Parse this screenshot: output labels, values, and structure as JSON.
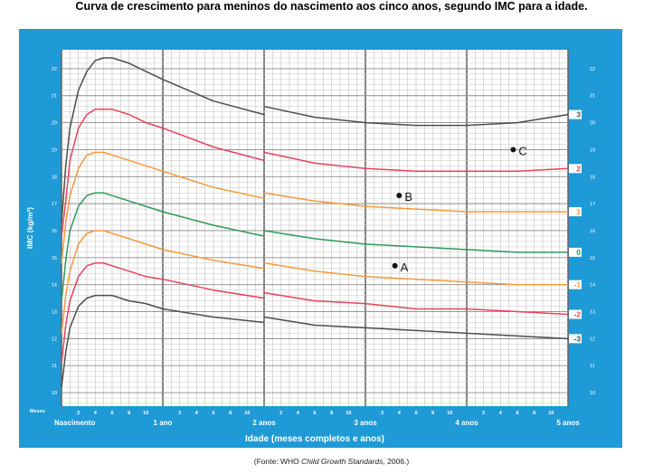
{
  "title": "Curva de crescimento para meninos do nascimento aos cinco anos, segundo IMC para a idade.",
  "source": {
    "prefix": "(Fonte: WHO ",
    "italic": "Child Growth Standards",
    "suffix": ", 2006.)"
  },
  "colors": {
    "frame": "#1e9ad6",
    "z3": "#4d4d4d",
    "z2": "#e8425a",
    "z1": "#f59a3c",
    "z0": "#2f9a5a"
  },
  "chart_data": {
    "type": "line",
    "ylabel": "IMC (kg/m²)",
    "xlabel": "Idade (meses completos e anos)",
    "xlim": [
      0,
      60
    ],
    "ylim": [
      9.5,
      22.7
    ],
    "yticks": [
      10,
      11,
      12,
      13,
      14,
      15,
      16,
      17,
      18,
      19,
      20,
      21,
      22
    ],
    "month_tick_label": "Meses",
    "month_ticks": [
      2,
      4,
      6,
      8,
      10
    ],
    "year_labels": [
      "Nascimento",
      "1 ano",
      "2 anos",
      "3 anos",
      "4 anos",
      "5 anos"
    ],
    "series": [
      {
        "name": "3",
        "color": "#4d4d4d",
        "x": [
          0,
          0.5,
          1,
          2,
          3,
          4,
          5,
          6,
          8,
          10,
          12,
          18,
          24,
          24.01,
          30,
          36,
          42,
          48,
          54,
          60
        ],
        "y": [
          16.3,
          18.4,
          19.8,
          21.2,
          21.9,
          22.3,
          22.4,
          22.4,
          22.2,
          21.9,
          21.6,
          20.8,
          20.3,
          20.6,
          20.2,
          20.0,
          19.9,
          19.9,
          20.0,
          20.3
        ]
      },
      {
        "name": "2",
        "color": "#e8425a",
        "x": [
          0,
          0.5,
          1,
          2,
          3,
          4,
          5,
          6,
          8,
          10,
          12,
          18,
          24,
          24.01,
          30,
          36,
          42,
          48,
          54,
          60
        ],
        "y": [
          15.8,
          17.1,
          18.6,
          19.8,
          20.3,
          20.5,
          20.5,
          20.5,
          20.3,
          20.0,
          19.8,
          19.1,
          18.6,
          18.9,
          18.5,
          18.3,
          18.2,
          18.2,
          18.2,
          18.3
        ]
      },
      {
        "name": "1",
        "color": "#f59a3c",
        "x": [
          0,
          0.5,
          1,
          2,
          3,
          4,
          5,
          6,
          8,
          10,
          12,
          18,
          24,
          24.01,
          30,
          36,
          42,
          48,
          54,
          60
        ],
        "y": [
          14.8,
          16.3,
          17.3,
          18.3,
          18.8,
          18.9,
          18.9,
          18.8,
          18.6,
          18.4,
          18.2,
          17.6,
          17.2,
          17.4,
          17.1,
          16.9,
          16.8,
          16.7,
          16.7,
          16.7
        ]
      },
      {
        "name": "0",
        "color": "#2f9a5a",
        "x": [
          0,
          0.5,
          1,
          2,
          3,
          4,
          5,
          6,
          8,
          10,
          12,
          18,
          24,
          24.01,
          30,
          36,
          42,
          48,
          54,
          60
        ],
        "y": [
          13.4,
          14.9,
          16.0,
          16.9,
          17.3,
          17.4,
          17.4,
          17.3,
          17.1,
          16.9,
          16.7,
          16.2,
          15.8,
          16.0,
          15.7,
          15.5,
          15.4,
          15.3,
          15.2,
          15.2
        ]
      },
      {
        "name": "-1",
        "color": "#f59a3c",
        "x": [
          0,
          0.5,
          1,
          2,
          3,
          4,
          5,
          6,
          8,
          10,
          12,
          18,
          24,
          24.01,
          30,
          36,
          42,
          48,
          54,
          60
        ],
        "y": [
          12.2,
          13.6,
          14.5,
          15.5,
          15.9,
          16.0,
          16.0,
          15.9,
          15.7,
          15.5,
          15.3,
          14.9,
          14.6,
          14.8,
          14.5,
          14.3,
          14.2,
          14.1,
          14.0,
          14.0
        ]
      },
      {
        "name": "-2",
        "color": "#e8425a",
        "x": [
          0,
          0.5,
          1,
          2,
          3,
          4,
          5,
          6,
          8,
          10,
          12,
          18,
          24,
          24.01,
          30,
          36,
          42,
          48,
          54,
          60
        ],
        "y": [
          11.1,
          12.5,
          13.4,
          14.3,
          14.7,
          14.8,
          14.8,
          14.7,
          14.5,
          14.3,
          14.2,
          13.8,
          13.5,
          13.7,
          13.4,
          13.3,
          13.1,
          13.1,
          13.0,
          12.9
        ]
      },
      {
        "name": "-3",
        "color": "#4d4d4d",
        "x": [
          0,
          0.5,
          1,
          2,
          3,
          4,
          5,
          6,
          8,
          10,
          12,
          18,
          24,
          24.01,
          30,
          36,
          42,
          48,
          54,
          60
        ],
        "y": [
          10.2,
          11.5,
          12.4,
          13.2,
          13.5,
          13.6,
          13.6,
          13.6,
          13.4,
          13.3,
          13.1,
          12.8,
          12.6,
          12.8,
          12.5,
          12.4,
          12.3,
          12.2,
          12.1,
          12.0
        ]
      }
    ],
    "points": [
      {
        "label": "A",
        "x": 39.5,
        "y": 14.7
      },
      {
        "label": "B",
        "x": 40,
        "y": 17.3
      },
      {
        "label": "C",
        "x": 53.5,
        "y": 19.0
      }
    ]
  }
}
